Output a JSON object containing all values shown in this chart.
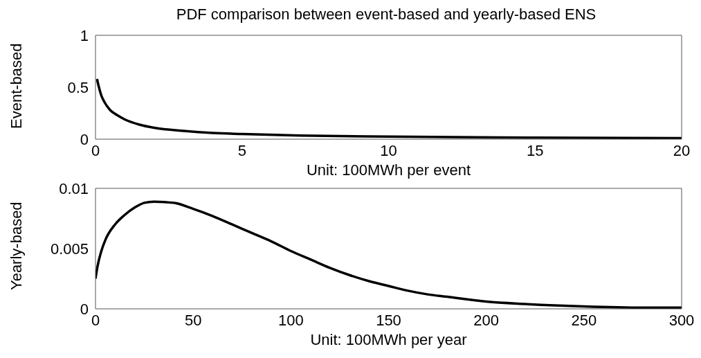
{
  "chart_data": [
    {
      "type": "line",
      "title": "PDF comparison between event-based and yearly-based ENS",
      "xlabel": "Unit: 100MWh per event",
      "ylabel": "Event-based",
      "x": [
        0.05,
        0.1,
        0.2,
        0.3,
        0.5,
        0.75,
        1,
        1.5,
        2,
        3,
        4,
        5,
        7,
        10,
        13,
        15,
        20
      ],
      "series": [
        {
          "color": "#000000",
          "values": [
            0.58,
            0.52,
            0.42,
            0.36,
            0.28,
            0.23,
            0.19,
            0.14,
            0.11,
            0.08,
            0.06,
            0.05,
            0.035,
            0.025,
            0.018,
            0.015,
            0.01
          ]
        }
      ],
      "xlim": [
        0,
        20
      ],
      "xticks": [
        0,
        5,
        10,
        15,
        20
      ],
      "ylim": [
        0,
        1
      ],
      "yticks": [
        0,
        0.5,
        1
      ],
      "grid": false,
      "legend": false,
      "marker": "none",
      "line_style": "solid"
    },
    {
      "type": "line",
      "xlabel": "Unit: 100MWh per year",
      "ylabel": "Yearly-based",
      "x": [
        0,
        1,
        3,
        5,
        10,
        15,
        20,
        25,
        30,
        40,
        50,
        60,
        70,
        80,
        90,
        100,
        110,
        120,
        130,
        140,
        150,
        160,
        170,
        180,
        200,
        220,
        250,
        280,
        300
      ],
      "series": [
        {
          "color": "#000000",
          "values": [
            0.0025,
            0.0035,
            0.0048,
            0.0057,
            0.007,
            0.0078,
            0.0084,
            0.0088,
            0.0089,
            0.0088,
            0.0083,
            0.0077,
            0.007,
            0.0063,
            0.0056,
            0.0048,
            0.0041,
            0.0034,
            0.0028,
            0.0023,
            0.0019,
            0.0015,
            0.0012,
            0.001,
            0.0006,
            0.0004,
            0.0002,
            0.0001,
            0.0001
          ]
        }
      ],
      "xlim": [
        0,
        300
      ],
      "xticks": [
        0,
        50,
        100,
        150,
        200,
        250,
        300
      ],
      "ylim": [
        0,
        0.01
      ],
      "yticks": [
        0,
        0.005,
        0.01
      ],
      "grid": false,
      "legend": false,
      "marker": "none",
      "line_style": "solid"
    }
  ]
}
